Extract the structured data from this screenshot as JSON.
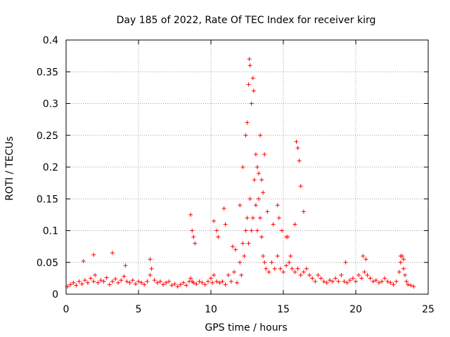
{
  "chart_data": {
    "type": "scatter",
    "title": "Day 185 of 2022, Rate Of TEC Index for receiver kirg",
    "xlabel": "GPS time / hours",
    "ylabel": "ROTI / TECUs",
    "xlim": [
      0,
      25
    ],
    "ylim": [
      0,
      0.4
    ],
    "xticks": [
      0,
      5,
      10,
      15,
      20,
      25
    ],
    "xtick_labels": [
      "0",
      "5",
      "10",
      "15",
      "20",
      "25"
    ],
    "yticks": [
      0,
      0.05,
      0.1,
      0.15,
      0.2,
      0.25,
      0.3,
      0.35,
      0.4
    ],
    "ytick_labels": [
      "0",
      "0.05",
      "0.1",
      "0.15",
      "0.2",
      "0.25",
      "0.3",
      "0.35",
      "0.4"
    ],
    "grid": true,
    "marker": "+",
    "marker_color": "#ff0000",
    "series": [
      {
        "name": "ROTI",
        "x": [
          0.1,
          0.3,
          0.5,
          0.7,
          0.9,
          1.1,
          1.3,
          1.5,
          1.7,
          1.9,
          2.0,
          2.2,
          2.4,
          2.6,
          2.8,
          3.0,
          3.2,
          3.4,
          3.6,
          3.8,
          4.0,
          4.2,
          4.4,
          4.6,
          4.8,
          5.0,
          5.2,
          5.4,
          5.6,
          5.8,
          5.9,
          6.1,
          6.3,
          6.5,
          6.7,
          6.9,
          7.1,
          7.3,
          7.5,
          7.7,
          7.9,
          8.1,
          8.3,
          8.5,
          8.6,
          8.7,
          8.8,
          9.0,
          9.2,
          9.4,
          9.6,
          9.8,
          10.0,
          10.1,
          10.2,
          10.4,
          10.6,
          10.8,
          11.0,
          11.2,
          11.4,
          11.6,
          11.8,
          12.0,
          12.1,
          12.2,
          12.3,
          12.4,
          12.5,
          12.6,
          12.7,
          12.8,
          12.9,
          13.0,
          13.1,
          13.2,
          13.3,
          13.4,
          13.5,
          13.6,
          13.7,
          13.8,
          14.0,
          14.2,
          14.4,
          14.6,
          14.8,
          15.0,
          15.2,
          15.4,
          15.6,
          15.8,
          16.0,
          16.2,
          16.4,
          16.6,
          16.8,
          17.0,
          17.2,
          17.4,
          17.6,
          17.8,
          18.0,
          18.2,
          18.4,
          18.6,
          18.8,
          19.0,
          19.2,
          19.4,
          19.6,
          19.8,
          20.0,
          20.2,
          20.4,
          20.6,
          20.8,
          21.0,
          21.2,
          21.4,
          21.6,
          21.8,
          22.0,
          22.2,
          22.4,
          22.6,
          22.8,
          23.0,
          23.1,
          23.2,
          23.3,
          23.4,
          23.5,
          23.6,
          23.8,
          24.0,
          1.2,
          1.9,
          3.2,
          4.1,
          5.8,
          8.6,
          8.7,
          8.8,
          8.9,
          10.2,
          10.4,
          10.5,
          10.9,
          11.0,
          11.5,
          11.7,
          12.0,
          12.2,
          12.4,
          12.5,
          12.6,
          12.65,
          12.7,
          12.8,
          12.9,
          12.95,
          13.1,
          13.2,
          13.3,
          13.4,
          13.5,
          13.6,
          13.7,
          13.9,
          14.3,
          14.6,
          14.7,
          14.9,
          15.2,
          15.3,
          15.5,
          15.8,
          15.9,
          16.0,
          16.1,
          16.2,
          16.4,
          19.3,
          20.5,
          20.7,
          23.1,
          23.3
        ],
        "y": [
          0.012,
          0.015,
          0.018,
          0.014,
          0.02,
          0.016,
          0.022,
          0.018,
          0.025,
          0.02,
          0.03,
          0.018,
          0.022,
          0.02,
          0.026,
          0.015,
          0.02,
          0.024,
          0.018,
          0.022,
          0.028,
          0.02,
          0.018,
          0.022,
          0.016,
          0.02,
          0.018,
          0.015,
          0.02,
          0.03,
          0.04,
          0.022,
          0.018,
          0.02,
          0.015,
          0.018,
          0.02,
          0.014,
          0.016,
          0.012,
          0.015,
          0.018,
          0.014,
          0.02,
          0.025,
          0.02,
          0.018,
          0.016,
          0.02,
          0.018,
          0.015,
          0.02,
          0.025,
          0.018,
          0.03,
          0.02,
          0.018,
          0.02,
          0.015,
          0.03,
          0.02,
          0.035,
          0.018,
          0.05,
          0.03,
          0.08,
          0.06,
          0.1,
          0.12,
          0.08,
          0.15,
          0.1,
          0.12,
          0.18,
          0.14,
          0.1,
          0.15,
          0.12,
          0.09,
          0.06,
          0.05,
          0.04,
          0.035,
          0.05,
          0.04,
          0.06,
          0.04,
          0.035,
          0.045,
          0.05,
          0.04,
          0.035,
          0.04,
          0.03,
          0.035,
          0.04,
          0.03,
          0.025,
          0.02,
          0.03,
          0.025,
          0.02,
          0.018,
          0.022,
          0.02,
          0.025,
          0.02,
          0.03,
          0.02,
          0.018,
          0.022,
          0.025,
          0.02,
          0.03,
          0.025,
          0.035,
          0.03,
          0.025,
          0.02,
          0.022,
          0.018,
          0.02,
          0.025,
          0.02,
          0.018,
          0.015,
          0.02,
          0.035,
          0.05,
          0.06,
          0.04,
          0.03,
          0.02,
          0.015,
          0.014,
          0.012,
          0.052,
          0.062,
          0.065,
          0.045,
          0.055,
          0.125,
          0.1,
          0.09,
          0.08,
          0.115,
          0.1,
          0.09,
          0.135,
          0.11,
          0.075,
          0.07,
          0.14,
          0.2,
          0.25,
          0.27,
          0.33,
          0.37,
          0.36,
          0.3,
          0.34,
          0.32,
          0.22,
          0.2,
          0.19,
          0.25,
          0.18,
          0.16,
          0.22,
          0.13,
          0.11,
          0.14,
          0.12,
          0.1,
          0.09,
          0.09,
          0.06,
          0.11,
          0.24,
          0.23,
          0.21,
          0.17,
          0.13,
          0.05,
          0.06,
          0.055,
          0.06,
          0.055
        ]
      }
    ]
  }
}
